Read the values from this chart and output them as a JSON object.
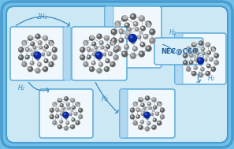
{
  "bg_outer": "#6ec0ea",
  "bg_inner": "#cce8f5",
  "box_border": "#5aabdb",
  "box_white": "#f0f8fd",
  "box_accent": "#b0d8f0",
  "nec_box_bg": "#d8eef8",
  "arrow_color": "#3a8abf",
  "text_color": "#2060a0",
  "nec_label": "NEC@C60",
  "label_2h2": "2H₂",
  "label_h2_tr": "H₂",
  "label_h2_bl": "H₂",
  "label_h2_br": "H₂",
  "label_h2_mid": "H₂",
  "atom_dark": "#606060",
  "atom_mid": "#888888",
  "atom_light": "#b8b8b8",
  "atom_white": "#d8d8d8",
  "atom_blue": "#0a28a0",
  "bond_color": "#707070",
  "fig_width": 2.97,
  "fig_height": 1.89,
  "dpi": 100
}
